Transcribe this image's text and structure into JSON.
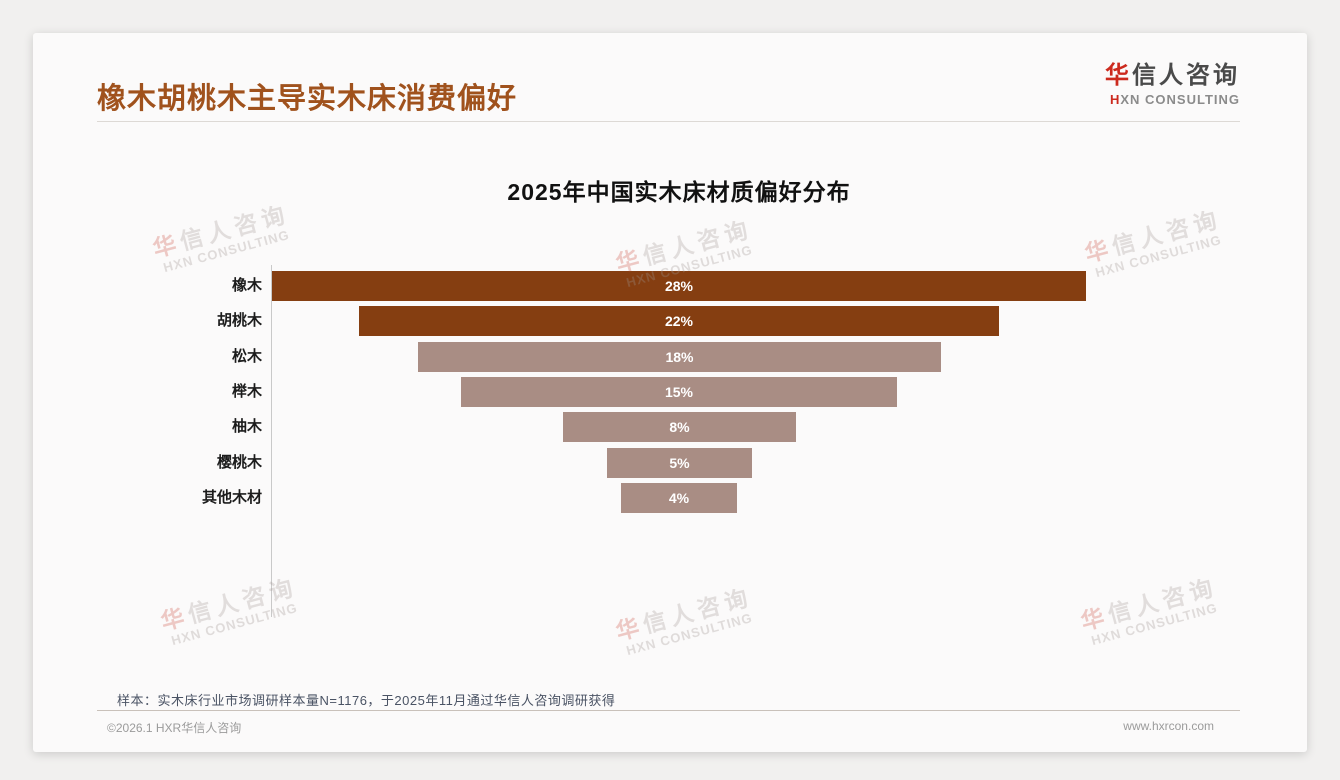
{
  "header": {
    "title": "橡木胡桃木主导实木床消费偏好",
    "logo": {
      "cn_accent": "华",
      "cn_rest": "信人咨询",
      "en_accent": "H",
      "en_rest": "XN CONSULTING"
    }
  },
  "watermark": {
    "cn_accent": "华",
    "cn_rest": "信人咨询",
    "en": "HXN CONSULTING"
  },
  "chart_data": {
    "type": "bar",
    "variant": "horizontal-centered-funnel",
    "title": "2025年中国实木床材质偏好分布",
    "categories": [
      "橡木",
      "胡桃木",
      "松木",
      "榉木",
      "柚木",
      "樱桃木",
      "其他木材"
    ],
    "values": [
      28,
      22,
      18,
      15,
      8,
      5,
      4
    ],
    "unit": "%",
    "value_labels": [
      "28%",
      "22%",
      "18%",
      "15%",
      "8%",
      "5%",
      "4%"
    ],
    "bar_colors": [
      "#853e11",
      "#853e11",
      "#a98d84",
      "#a98d84",
      "#a98d84",
      "#a98d84",
      "#a98d84"
    ],
    "value_label_color": "#ffffff",
    "xlim": [
      0,
      28
    ],
    "grid": "off",
    "legend": "none",
    "axis": "left-vertical-line-only"
  },
  "note": {
    "text": "样本：实木床行业市场调研样本量N=1176，于2025年11月通过华信人咨询调研获得"
  },
  "footer": {
    "copyright": "©2026.1 HXR华信人咨询",
    "website": "www.hxrcon.com"
  },
  "colors": {
    "title_accent": "#a0521d",
    "bar_dark": "#853e11",
    "bar_light": "#a98d84",
    "logo_red": "#cc2a1e",
    "card_bg": "#fbfafa",
    "page_bg": "#f1f0ef"
  }
}
